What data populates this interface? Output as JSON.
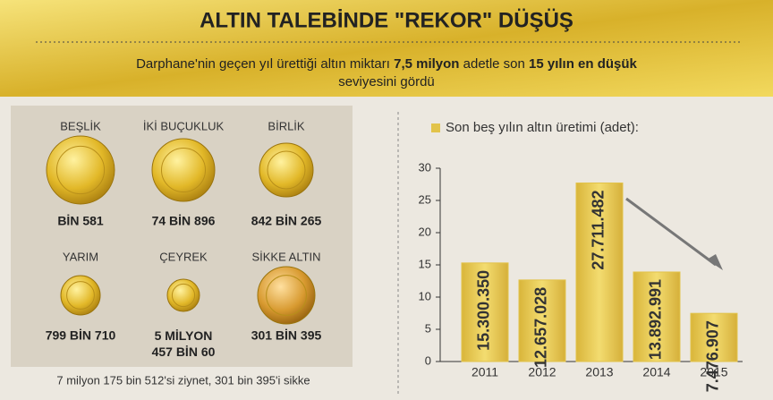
{
  "header": {
    "title": "ALTIN TALEBİNDE \"REKOR\" DÜŞÜŞ",
    "subtitle": [
      "Darphane'nin geçen yıl ürettiği altın miktarı ",
      "7,5 milyon",
      " adetle son ",
      "15 yılın en düşük",
      " seviyesini gördü"
    ]
  },
  "coins": [
    {
      "label": "BEŞLİK",
      "value": "BİN 581"
    },
    {
      "label": "İKİ BUÇUKLUK",
      "value": "74 BİN 896"
    },
    {
      "label": "BİRLİK",
      "value": "842 BİN 265"
    },
    {
      "label": "YARIM",
      "value": "799 BİN 710"
    },
    {
      "label": "ÇEYREK",
      "value": "5 MİLYON\n457 BİN 60"
    },
    {
      "label": "SİKKE ALTIN",
      "value": "301 BİN 395"
    }
  ],
  "footnote": "7 milyon 175 bin 512'si ziynet, 301 bin 395'i sikke",
  "chart_data": {
    "type": "bar",
    "categories": [
      "2011",
      "2012",
      "2013",
      "2014",
      "2015"
    ],
    "series": [
      {
        "name": "Son beş yılın altın üretimi (adet):",
        "color": "#e2c34a",
        "values": [
          15.30035,
          12.657028,
          27.711482,
          13.892991,
          7.476907
        ],
        "value_labels": [
          "15.300.350",
          "12.657.028",
          "27.711.482",
          "13.892.991",
          "7.476.907"
        ]
      }
    ],
    "ylim": [
      0,
      30
    ],
    "yticks": [
      0,
      5,
      10,
      15,
      20,
      25,
      30
    ]
  }
}
